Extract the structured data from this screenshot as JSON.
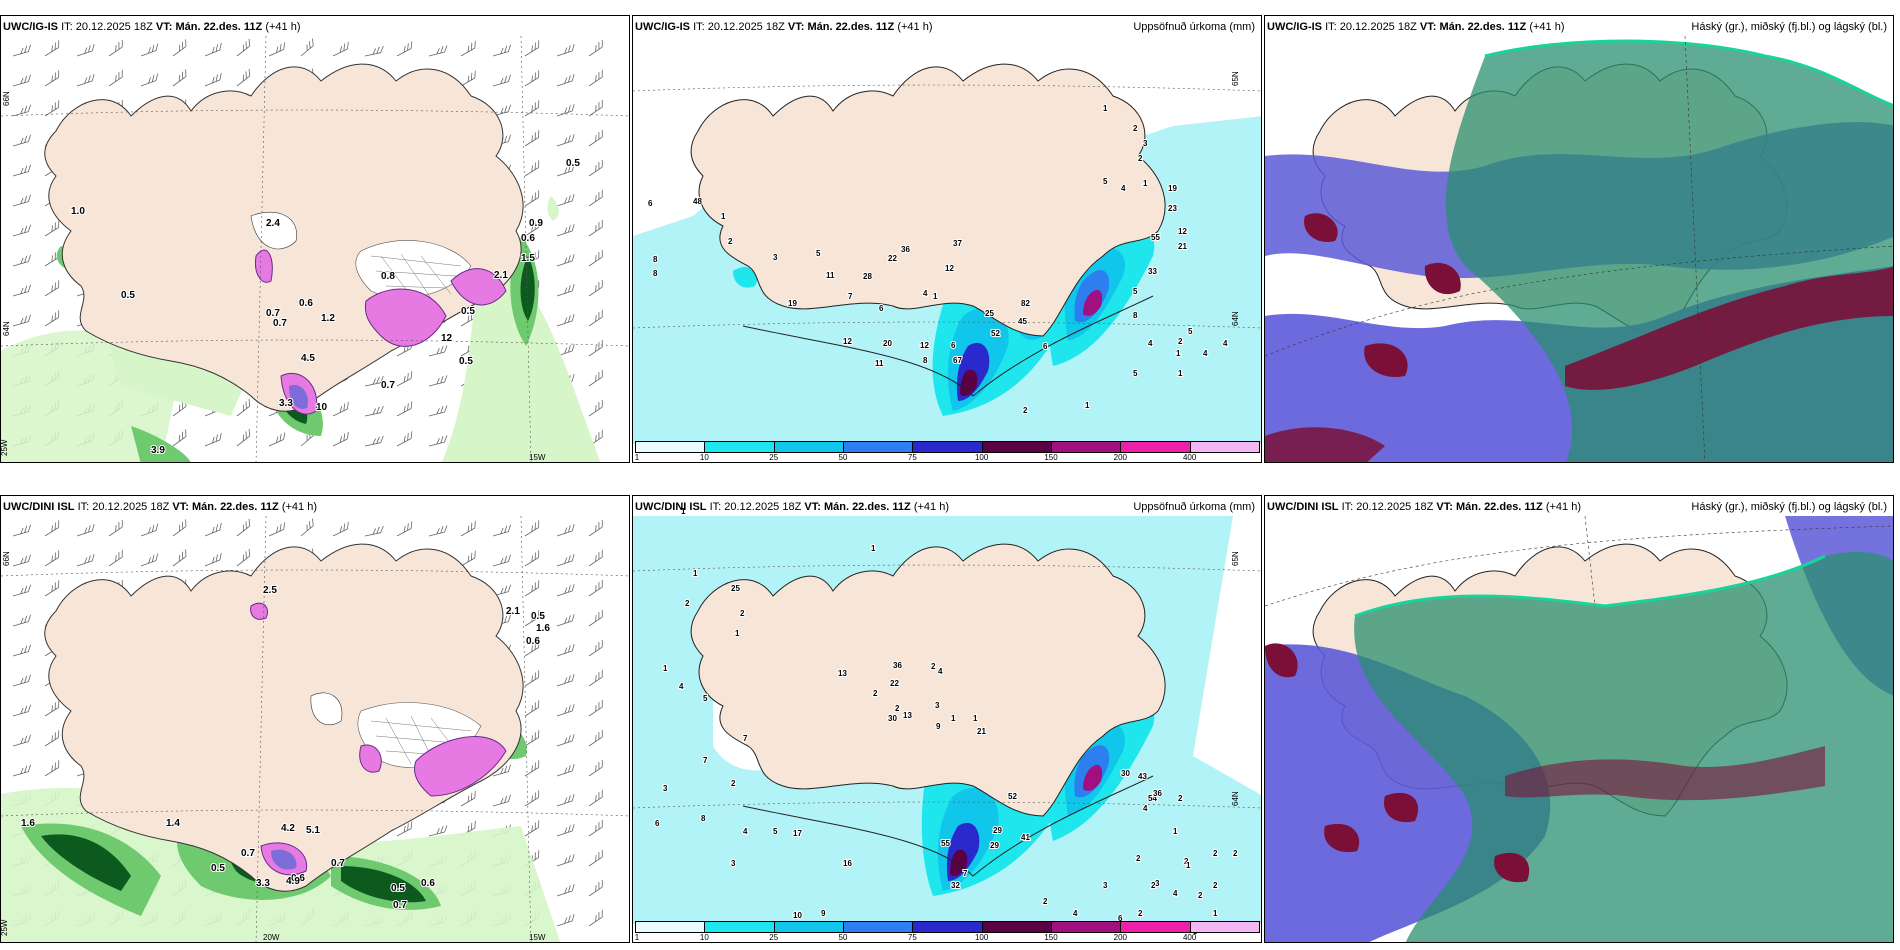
{
  "panels": [
    {
      "model": "UWC/IG-IS",
      "run_label": "IT:",
      "run": "20.12.2025 18Z",
      "valid_label": "VT:",
      "valid": "Mán. 22.des. 11Z",
      "lead": "(+41 h)",
      "right": "",
      "lat_labels": [
        "66N",
        "64N",
        "25W"
      ],
      "lon_labels": [
        "15W"
      ],
      "values": [
        "0.5",
        "1.0",
        "2.4",
        "0.7",
        "0.9",
        "0.6",
        "1.5",
        "0.5",
        "2.1",
        "0.6",
        "0.5",
        "0.8",
        "1.2",
        "4.5",
        "0.7",
        "3.3",
        "10",
        "0.7",
        "0.5",
        "3.9",
        "12"
      ]
    },
    {
      "model": "UWC/IG-IS",
      "run_label": "IT:",
      "run": "20.12.2025 18Z",
      "valid_label": "VT:",
      "valid": "Mán. 22.des. 11Z",
      "lead": "(+41 h)",
      "right": "Uppsöfnuð úrkoma (mm)",
      "lat_labels": [
        "65N",
        "64N"
      ],
      "lon_labels": [],
      "values": [
        "6",
        "48",
        "1",
        "2",
        "8",
        "8",
        "3",
        "5",
        "11",
        "19",
        "7",
        "6",
        "12",
        "20",
        "11",
        "12",
        "8",
        "6",
        "1",
        "22",
        "36",
        "28",
        "37",
        "12",
        "4",
        "25",
        "52",
        "45",
        "82",
        "67",
        "1",
        "2",
        "3",
        "2",
        "1",
        "5",
        "4",
        "19",
        "23",
        "12",
        "21",
        "55",
        "33",
        "5",
        "8",
        "4",
        "2",
        "1",
        "6",
        "5",
        "4",
        "5",
        "4",
        "1",
        "2",
        "1"
      ],
      "colorbar": [
        "1",
        "10",
        "25",
        "50",
        "75",
        "100",
        "150",
        "200",
        "400"
      ]
    },
    {
      "model": "UWC/IG-IS",
      "run_label": "IT:",
      "run": "20.12.2025 18Z",
      "valid_label": "VT:",
      "valid": "Mán. 22.des. 11Z",
      "lead": "(+41 h)",
      "right": "Háský (gr.), miðský (fj.bl.) og lágský (bl.)"
    },
    {
      "model": "UWC/DINI ISL",
      "run_label": "IT:",
      "run": "20.12.2025 18Z",
      "valid_label": "VT:",
      "valid": "Mán. 22.des. 11Z",
      "lead": "(+41 h)",
      "right": "",
      "lat_labels": [
        "66N",
        "25W"
      ],
      "lon_labels": [
        "20W",
        "15W"
      ],
      "values": [
        "1.6",
        "1.4",
        "0.5",
        "0.6",
        "0.7",
        "2.5",
        "4.2",
        "5.1",
        "0.7",
        "3.3",
        "4.9",
        "0.6",
        "2.1",
        "0.5",
        "0.6",
        "0.5",
        "0.7",
        "1.6"
      ]
    },
    {
      "model": "UWC/DINI ISL",
      "run_label": "IT:",
      "run": "20.12.2025 18Z",
      "valid_label": "VT:",
      "valid": "Mán. 22.des. 11Z",
      "lead": "(+41 h)",
      "right": "Uppsöfnuð úrkoma (mm)",
      "lat_labels": [
        "65N",
        "64N"
      ],
      "lon_labels": [],
      "values": [
        "1",
        "1",
        "25",
        "2",
        "1",
        "2",
        "1",
        "4",
        "5",
        "3",
        "6",
        "8",
        "7",
        "7",
        "2",
        "4",
        "5",
        "10",
        "9",
        "3",
        "17",
        "16",
        "32",
        "55",
        "29",
        "41",
        "29",
        "52",
        "7",
        "1",
        "22",
        "36",
        "13",
        "2",
        "30",
        "13",
        "1",
        "2",
        "1",
        "2",
        "4",
        "3",
        "9",
        "21",
        "30",
        "43",
        "54",
        "36",
        "2",
        "4",
        "2",
        "3",
        "2",
        "1",
        "2",
        "1",
        "2",
        "4",
        "3",
        "2",
        "6",
        "4",
        "2",
        "2",
        "3",
        "2",
        "1",
        "2"
      ],
      "colorbar": [
        "1",
        "10",
        "25",
        "50",
        "75",
        "100",
        "150",
        "200",
        "400"
      ]
    },
    {
      "model": "UWC/DINI ISL",
      "run_label": "IT:",
      "run": "20.12.2025 18Z",
      "valid_label": "VT:",
      "valid": "Mán. 22.des. 11Z",
      "lead": "(+41 h)",
      "right": "Háský (gr.), miðský (fj.bl.) og lágský (bl.)"
    }
  ],
  "colors": {
    "land": "#f7e6d8",
    "precip_scale": [
      "#e9fbfd",
      "#1ee6ec",
      "#10c6ea",
      "#2d7ff0",
      "#2a2acc",
      "#5c0045",
      "#a0107f",
      "#ee1fa8",
      "#f2b6f2"
    ],
    "wind_light": "#d6f5c8",
    "wind_mid": "#6fc96f",
    "wind_dark": "#0d5a1f",
    "snow_pink": "#e67ae2",
    "high_cloud": "#2a8f6f",
    "mid_cloud": "#5c5ad8",
    "low_cloud": "#7a1038"
  }
}
